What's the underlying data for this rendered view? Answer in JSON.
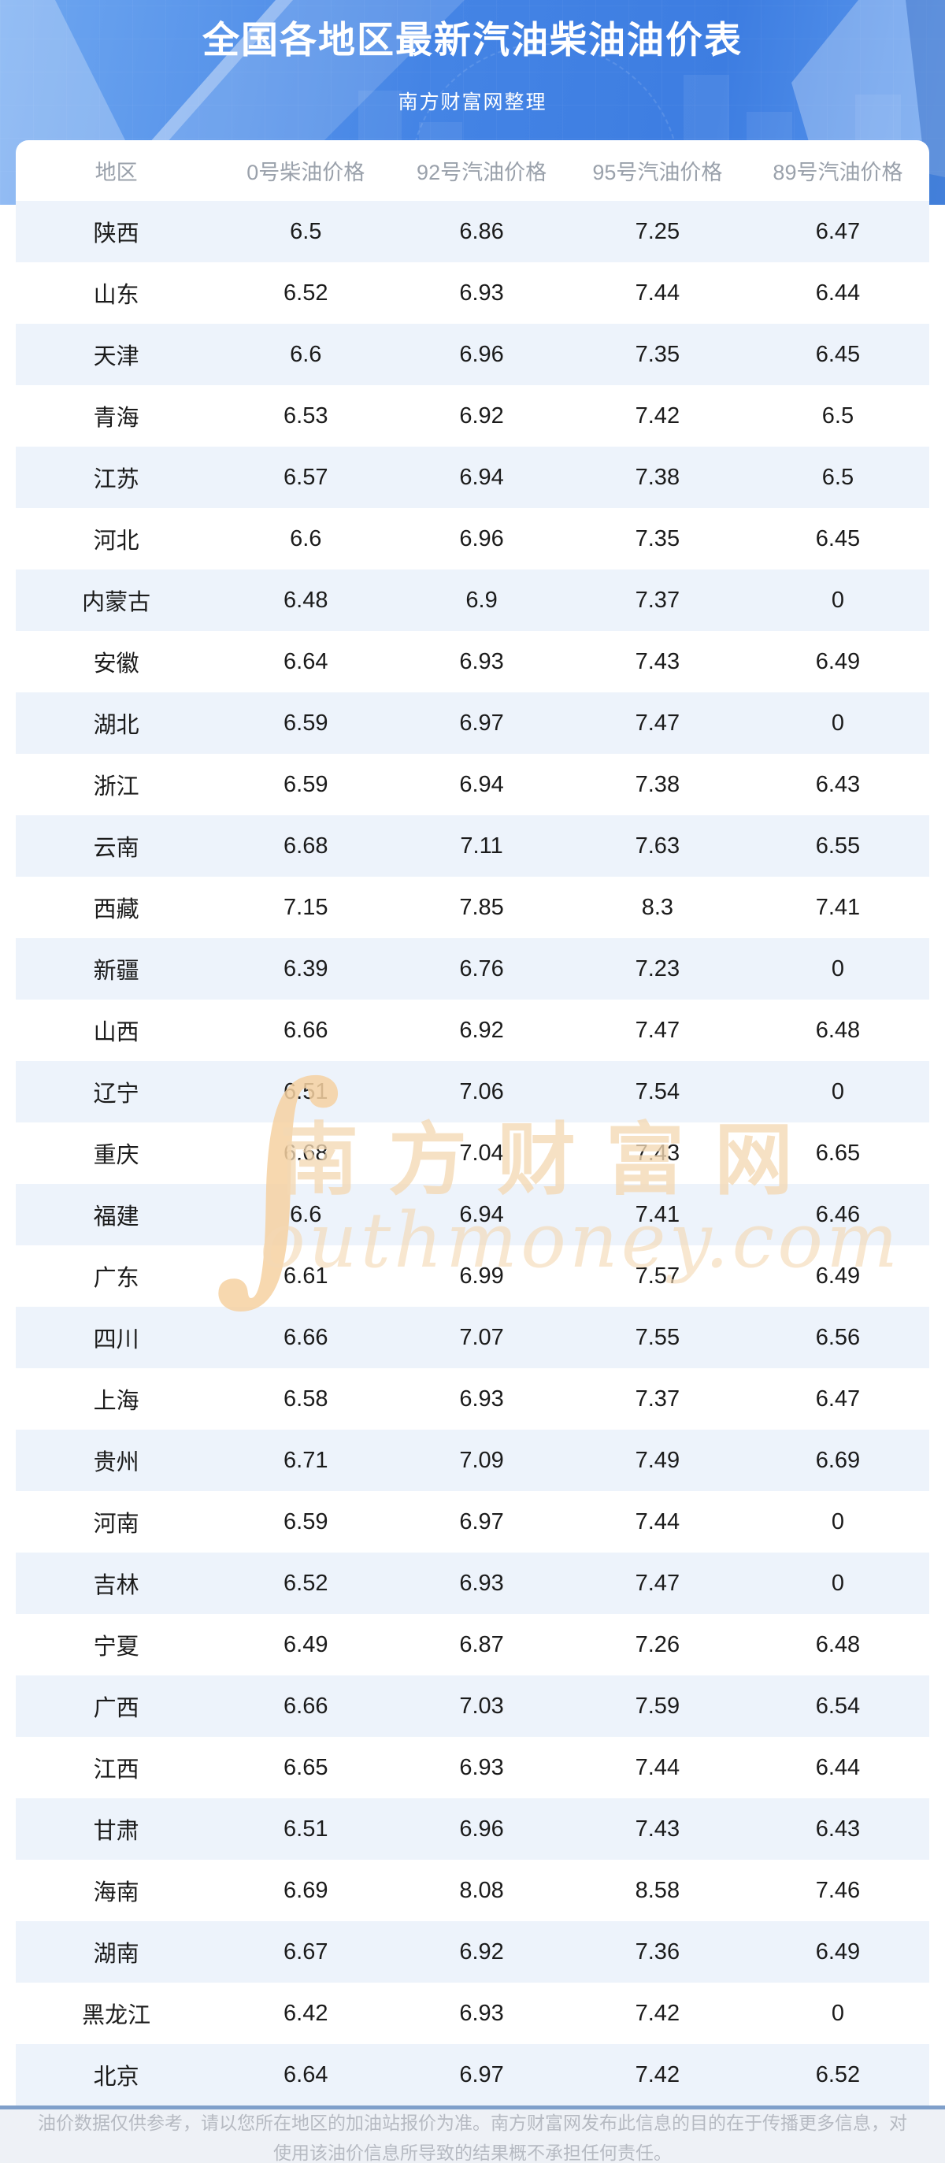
{
  "page": {
    "title": "全国各地区最新汽油柴油油价表",
    "subtitle": "南方财富网整理"
  },
  "table": {
    "columns": [
      "地区",
      "0号柴油价格",
      "92号汽油价格",
      "95号汽油价格",
      "89号汽油价格"
    ],
    "rows": [
      {
        "region": "陕西",
        "values": [
          "6.5",
          "6.86",
          "7.25",
          "6.47"
        ]
      },
      {
        "region": "山东",
        "values": [
          "6.52",
          "6.93",
          "7.44",
          "6.44"
        ]
      },
      {
        "region": "天津",
        "values": [
          "6.6",
          "6.96",
          "7.35",
          "6.45"
        ]
      },
      {
        "region": "青海",
        "values": [
          "6.53",
          "6.92",
          "7.42",
          "6.5"
        ]
      },
      {
        "region": "江苏",
        "values": [
          "6.57",
          "6.94",
          "7.38",
          "6.5"
        ]
      },
      {
        "region": "河北",
        "values": [
          "6.6",
          "6.96",
          "7.35",
          "6.45"
        ]
      },
      {
        "region": "内蒙古",
        "values": [
          "6.48",
          "6.9",
          "7.37",
          "0"
        ]
      },
      {
        "region": "安徽",
        "values": [
          "6.64",
          "6.93",
          "7.43",
          "6.49"
        ]
      },
      {
        "region": "湖北",
        "values": [
          "6.59",
          "6.97",
          "7.47",
          "0"
        ]
      },
      {
        "region": "浙江",
        "values": [
          "6.59",
          "6.94",
          "7.38",
          "6.43"
        ]
      },
      {
        "region": "云南",
        "values": [
          "6.68",
          "7.11",
          "7.63",
          "6.55"
        ]
      },
      {
        "region": "西藏",
        "values": [
          "7.15",
          "7.85",
          "8.3",
          "7.41"
        ]
      },
      {
        "region": "新疆",
        "values": [
          "6.39",
          "6.76",
          "7.23",
          "0"
        ]
      },
      {
        "region": "山西",
        "values": [
          "6.66",
          "6.92",
          "7.47",
          "6.48"
        ]
      },
      {
        "region": "辽宁",
        "values": [
          "6.51",
          "7.06",
          "7.54",
          "0"
        ]
      },
      {
        "region": "重庆",
        "values": [
          "6.68",
          "7.04",
          "7.43",
          "6.65"
        ]
      },
      {
        "region": "福建",
        "values": [
          "6.6",
          "6.94",
          "7.41",
          "6.46"
        ]
      },
      {
        "region": "广东",
        "values": [
          "6.61",
          "6.99",
          "7.57",
          "6.49"
        ]
      },
      {
        "region": "四川",
        "values": [
          "6.66",
          "7.07",
          "7.55",
          "6.56"
        ]
      },
      {
        "region": "上海",
        "values": [
          "6.58",
          "6.93",
          "7.37",
          "6.47"
        ]
      },
      {
        "region": "贵州",
        "values": [
          "6.71",
          "7.09",
          "7.49",
          "6.69"
        ]
      },
      {
        "region": "河南",
        "values": [
          "6.59",
          "6.97",
          "7.44",
          "0"
        ]
      },
      {
        "region": "吉林",
        "values": [
          "6.52",
          "6.93",
          "7.47",
          "0"
        ]
      },
      {
        "region": "宁夏",
        "values": [
          "6.49",
          "6.87",
          "7.26",
          "6.48"
        ]
      },
      {
        "region": "广西",
        "values": [
          "6.66",
          "7.03",
          "7.59",
          "6.54"
        ]
      },
      {
        "region": "江西",
        "values": [
          "6.65",
          "6.93",
          "7.44",
          "6.44"
        ]
      },
      {
        "region": "甘肃",
        "values": [
          "6.51",
          "6.96",
          "7.43",
          "6.43"
        ]
      },
      {
        "region": "海南",
        "values": [
          "6.69",
          "8.08",
          "8.58",
          "7.46"
        ]
      },
      {
        "region": "湖南",
        "values": [
          "6.67",
          "6.92",
          "7.36",
          "6.49"
        ]
      },
      {
        "region": "黑龙江",
        "values": [
          "6.42",
          "6.93",
          "7.42",
          "0"
        ]
      },
      {
        "region": "北京",
        "values": [
          "6.64",
          "6.97",
          "7.42",
          "6.52"
        ]
      }
    ]
  },
  "watermark": {
    "swoosh": "∫",
    "cn": "南方财富网",
    "en": "outhmoney.com"
  },
  "footer": {
    "line1": "油价数据仅供参考，请以您所在地区的加油站报价为准。南方财富网发布此信息的目的在于传播更多信息，对",
    "line2": "使用该油价信息所导致的结果概不承担任何责任。"
  },
  "colors": {
    "banner_blue": "#4484e5",
    "stripe": "#edf3fb",
    "divider": "#7f9fca",
    "header_text": "#9aa1ab",
    "cell_text": "#1b1b1b",
    "footer_text": "#b6bac2",
    "footer_bg": "#eef1f6",
    "watermark_tan": "#f4d9b4"
  }
}
